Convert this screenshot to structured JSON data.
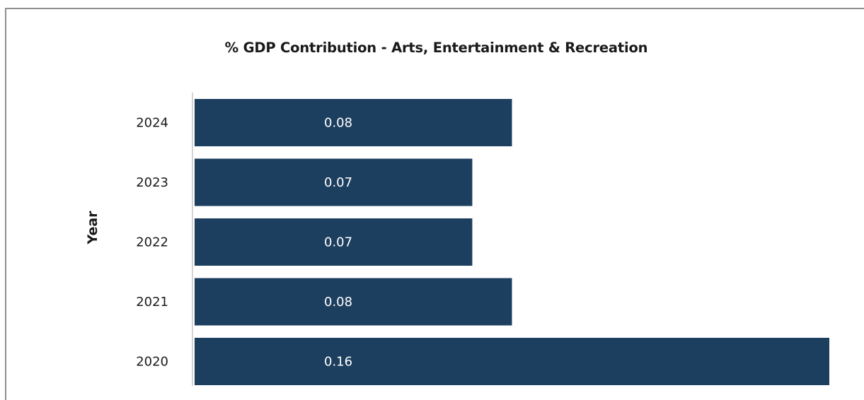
{
  "chart_data": {
    "type": "bar",
    "orientation": "horizontal",
    "title": "% GDP Contribution - Arts, Entertainment & Recreation",
    "ylabel": "Year",
    "xlabel": "",
    "categories": [
      "2024",
      "2023",
      "2022",
      "2021",
      "2020"
    ],
    "values": [
      0.08,
      0.07,
      0.07,
      0.08,
      0.16
    ],
    "data_labels": [
      "0.08",
      "0.07",
      "0.07",
      "0.08",
      "0.16"
    ],
    "xlim": [
      0,
      0.16
    ],
    "grid": false,
    "bar_color": "#1d3f5f"
  }
}
